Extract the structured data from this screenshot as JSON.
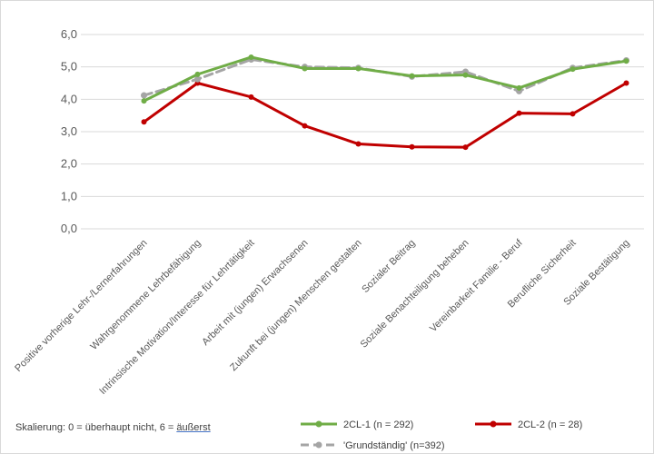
{
  "chart_data": {
    "type": "line",
    "categories": [
      "Positive vorherige Lehr-/Lernerfahrungen",
      "Wahrgenommene Lehrbefähigung",
      "Intrinsische Motivation/Interesse für Lehrtätigkeit",
      "Arbeit mit (jungen) Erwachsenen",
      "Zukunft bei (jungen) Menschen gestalten",
      "Sozialer Beitrag",
      "Soziale Benachteiligung beheben",
      "Vereinbarkeit Familie - Beruf",
      "Berufliche Sicherheit",
      "Soziale Bestätigung"
    ],
    "series": [
      {
        "name": "2CL-1 (n = 292)",
        "color": "#70ad47",
        "style": "solid",
        "values": [
          3.95,
          4.77,
          5.3,
          4.95,
          4.95,
          4.72,
          4.75,
          4.35,
          4.93,
          5.18
        ]
      },
      {
        "name": "2CL-2 (n = 28)",
        "color": "#c00000",
        "style": "solid",
        "values": [
          3.3,
          4.5,
          4.07,
          3.18,
          2.62,
          2.53,
          2.52,
          3.57,
          3.55,
          4.5
        ]
      },
      {
        "name": "'Grundständig' (n=392)",
        "color": "#a5a5a5",
        "style": "dashed",
        "values": [
          4.12,
          4.62,
          5.23,
          5.0,
          4.97,
          4.7,
          4.85,
          4.25,
          4.97,
          5.2
        ]
      }
    ],
    "ylim": [
      0,
      6
    ],
    "yticks": [
      "0,0",
      "1,0",
      "2,0",
      "3,0",
      "4,0",
      "5,0",
      "6,0"
    ],
    "grid": true,
    "legend_position": "bottom"
  },
  "footnote": {
    "prefix": "Skalierung: 0 = überhaupt nicht, 6 = ",
    "link_text": "äußerst"
  }
}
